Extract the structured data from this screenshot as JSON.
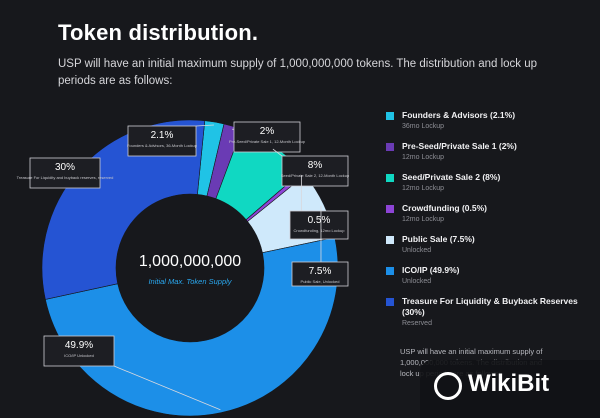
{
  "title": "Token distribution.",
  "subtitle": "USP will have an initial maximum supply of 1,000,000,000 tokens. The distribution and lock up periods are as follows:",
  "chart_data": {
    "type": "pie",
    "center_value": "1,000,000,000",
    "center_label": "Initial Max. Token Supply",
    "slices": [
      {
        "name": "Founders & Advisors",
        "value": 2.1,
        "pct_label": "2.1%",
        "callout": "Founders & Advisors, 36-Month Lockup",
        "color": "#20c3e6"
      },
      {
        "name": "Pre-Seed/Private Sale 1",
        "value": 2.0,
        "pct_label": "2%",
        "callout": "Pre-Seed/Private Sale 1, 12-Month Lockup",
        "color": "#6a3bb4"
      },
      {
        "name": "Seed/Private Sale 2",
        "value": 8.0,
        "pct_label": "8%",
        "callout": "Seed/Private Sale 2, 12-Month Lockup",
        "color": "#10d8c2"
      },
      {
        "name": "Crowdfunding",
        "value": 0.5,
        "pct_label": "0.5%",
        "callout": "Crowdfunding, 12mo Lockup",
        "color": "#8d44d6"
      },
      {
        "name": "Public Sale",
        "value": 7.5,
        "pct_label": "7.5%",
        "callout": "Public Sale, Unlocked",
        "color": "#cfe9fb"
      },
      {
        "name": "ICO/IP",
        "value": 49.9,
        "pct_label": "49.9%",
        "callout": "ICO/IP Unlocked",
        "color": "#1c8fe8"
      },
      {
        "name": "Treasure For Liquidity & Buyback Reserves",
        "value": 30.0,
        "pct_label": "30%",
        "callout": "Treasure For Liquidity and buyback reserves, reserved",
        "color": "#2554d3"
      }
    ]
  },
  "legend": [
    {
      "label": "Founders & Advisors (2.1%)",
      "sub": "36mo Lockup",
      "color": "#20c3e6"
    },
    {
      "label": "Pre-Seed/Private Sale 1 (2%)",
      "sub": "12mo Lockup",
      "color": "#6a3bb4"
    },
    {
      "label": "Seed/Private Sale 2 (8%)",
      "sub": "12mo Lockup",
      "color": "#10d8c2"
    },
    {
      "label": "Crowdfunding (0.5%)",
      "sub": "12mo Lockup",
      "color": "#8d44d6"
    },
    {
      "label": "Public Sale (7.5%)",
      "sub": "Unlocked",
      "color": "#cfe9fb"
    },
    {
      "label": "ICO/IP (49.9%)",
      "sub": "Unlocked",
      "color": "#1c8fe8"
    },
    {
      "label": "Treasure For Liquidity & Buyback Reserves (30%)",
      "sub": "Reserved",
      "color": "#2554d3"
    }
  ],
  "note": "USP will have an initial maximum supply of 1,000,000,000 tokens. The distribution and lock up periods are as follows:",
  "watermark": "WikiBit"
}
